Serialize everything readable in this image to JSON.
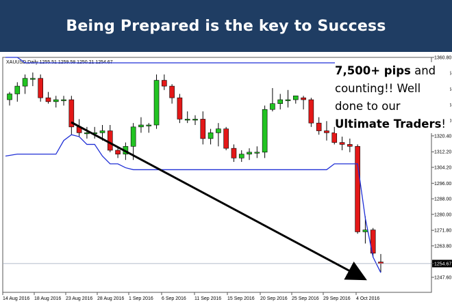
{
  "banner": {
    "title": "Being Prepared is the key to Success"
  },
  "caption": {
    "line1_bold": "7,500+ pips",
    "line1_rest": " and",
    "line2": "counting!!  Well",
    "line3": "done to our",
    "line4_bold": "Ultimate Traders",
    "line4_rest": "!"
  },
  "colors": {
    "up": "#22c322",
    "down": "#e31818",
    "channel": "#1f2fd6",
    "arrow": "#000000",
    "banner": "#1f3d63",
    "current_price_bg": "#000000"
  },
  "chart_data": {
    "type": "candlestick",
    "symbol_header": "XAUUSD,Daily  1255.51 1259.58 1250.21 1254.67",
    "y_ticks": [
      "1360.80",
      "1352.65",
      "1344.45",
      "1336.35",
      "1328.20",
      "1320.40",
      "1312.20",
      "1304.20",
      "1296.00",
      "1288.00",
      "1280.00",
      "1271.80",
      "1263.80",
      "1254.67",
      "1247.60"
    ],
    "current_price": "1254.67",
    "ylim": [
      1247.6,
      1360.8
    ],
    "x_ticks": [
      "14 Aug 2016",
      "18 Aug 2016",
      "23 Aug 2016",
      "28 Aug 2016",
      "1 Sep 2016",
      "6 Sep 2016",
      "11 Sep 2016",
      "15 Sep 2016",
      "20 Sep 2016",
      "25 Sep 2016",
      "29 Sep 2016",
      "4 Oct 2016"
    ],
    "candles": [
      {
        "o": 1339,
        "h": 1343,
        "l": 1336,
        "c": 1342
      },
      {
        "o": 1342,
        "h": 1348,
        "l": 1338,
        "c": 1346
      },
      {
        "o": 1346,
        "h": 1352,
        "l": 1342,
        "c": 1350
      },
      {
        "o": 1350,
        "h": 1353,
        "l": 1346,
        "c": 1350
      },
      {
        "o": 1350,
        "h": 1352,
        "l": 1338,
        "c": 1340
      },
      {
        "o": 1340,
        "h": 1343,
        "l": 1337,
        "c": 1338
      },
      {
        "o": 1338,
        "h": 1341,
        "l": 1335,
        "c": 1339
      },
      {
        "o": 1339,
        "h": 1341,
        "l": 1336,
        "c": 1339
      },
      {
        "o": 1339,
        "h": 1341,
        "l": 1321,
        "c": 1325
      },
      {
        "o": 1325,
        "h": 1329,
        "l": 1320,
        "c": 1322
      },
      {
        "o": 1322,
        "h": 1325,
        "l": 1319,
        "c": 1322
      },
      {
        "o": 1322,
        "h": 1325,
        "l": 1319,
        "c": 1322
      },
      {
        "o": 1322,
        "h": 1326,
        "l": 1318,
        "c": 1323
      },
      {
        "o": 1323,
        "h": 1326,
        "l": 1312,
        "c": 1313
      },
      {
        "o": 1313,
        "h": 1315,
        "l": 1309,
        "c": 1311
      },
      {
        "o": 1311,
        "h": 1317,
        "l": 1308,
        "c": 1315
      },
      {
        "o": 1315,
        "h": 1327,
        "l": 1308,
        "c": 1325
      },
      {
        "o": 1325,
        "h": 1330,
        "l": 1322,
        "c": 1326
      },
      {
        "o": 1326,
        "h": 1327,
        "l": 1322,
        "c": 1326
      },
      {
        "o": 1326,
        "h": 1352,
        "l": 1324,
        "c": 1349
      },
      {
        "o": 1349,
        "h": 1352,
        "l": 1344,
        "c": 1346
      },
      {
        "o": 1346,
        "h": 1347,
        "l": 1337,
        "c": 1340
      },
      {
        "o": 1340,
        "h": 1342,
        "l": 1327,
        "c": 1329
      },
      {
        "o": 1329,
        "h": 1333,
        "l": 1327,
        "c": 1329
      },
      {
        "o": 1329,
        "h": 1331,
        "l": 1326,
        "c": 1329
      },
      {
        "o": 1329,
        "h": 1333,
        "l": 1316,
        "c": 1319
      },
      {
        "o": 1319,
        "h": 1324,
        "l": 1316,
        "c": 1322
      },
      {
        "o": 1322,
        "h": 1327,
        "l": 1315,
        "c": 1324
      },
      {
        "o": 1324,
        "h": 1325,
        "l": 1313,
        "c": 1314
      },
      {
        "o": 1314,
        "h": 1316,
        "l": 1307,
        "c": 1309
      },
      {
        "o": 1309,
        "h": 1313,
        "l": 1307,
        "c": 1311
      },
      {
        "o": 1311,
        "h": 1314,
        "l": 1308,
        "c": 1312
      },
      {
        "o": 1312,
        "h": 1315,
        "l": 1309,
        "c": 1312
      },
      {
        "o": 1312,
        "h": 1336,
        "l": 1309,
        "c": 1334
      },
      {
        "o": 1334,
        "h": 1345,
        "l": 1333,
        "c": 1337
      },
      {
        "o": 1337,
        "h": 1342,
        "l": 1334,
        "c": 1339
      },
      {
        "o": 1339,
        "h": 1344,
        "l": 1335,
        "c": 1339
      },
      {
        "o": 1339,
        "h": 1341,
        "l": 1337,
        "c": 1341
      },
      {
        "o": 1340,
        "h": 1341,
        "l": 1334,
        "c": 1339
      },
      {
        "o": 1339,
        "h": 1340,
        "l": 1325,
        "c": 1327
      },
      {
        "o": 1327,
        "h": 1330,
        "l": 1321,
        "c": 1323
      },
      {
        "o": 1323,
        "h": 1328,
        "l": 1318,
        "c": 1322
      },
      {
        "o": 1322,
        "h": 1325,
        "l": 1316,
        "c": 1317
      },
      {
        "o": 1317,
        "h": 1320,
        "l": 1313,
        "c": 1316
      },
      {
        "o": 1316,
        "h": 1319,
        "l": 1312,
        "c": 1315
      },
      {
        "o": 1315,
        "h": 1316,
        "l": 1270,
        "c": 1271
      },
      {
        "o": 1271,
        "h": 1279,
        "l": 1265,
        "c": 1272
      },
      {
        "o": 1272,
        "h": 1273,
        "l": 1258,
        "c": 1260
      },
      {
        "o": 1255.5,
        "h": 1259.6,
        "l": 1250.2,
        "c": 1254.7
      }
    ],
    "channel_upper": [
      1360.8,
      1360.8,
      1358,
      1358,
      1358,
      1358,
      1358,
      1358,
      1358,
      1358,
      1358,
      1358,
      1358,
      1358,
      1358,
      1358,
      1358,
      1358,
      1358,
      1358,
      1358,
      1358,
      1358,
      1358,
      1358,
      1358,
      1358,
      1358,
      1358,
      1358,
      1358,
      1358,
      1358,
      1358,
      1358,
      1358,
      1358,
      1358,
      1358,
      1358,
      1358,
      1358,
      1358,
      1358,
      1358,
      1358,
      1358,
      1358,
      1358
    ],
    "channel_lower": [
      1310,
      1311,
      1311,
      1311,
      1311,
      1311,
      1311,
      1318,
      1321,
      1320,
      1316,
      1316,
      1310,
      1306,
      1306,
      1304,
      1303,
      1303,
      1303,
      1303,
      1303,
      1303,
      1303,
      1303,
      1303,
      1303,
      1303,
      1303,
      1303,
      1303,
      1303,
      1303,
      1303,
      1303,
      1303,
      1303,
      1303,
      1303,
      1303,
      1303,
      1303,
      1303,
      1306,
      1306,
      1306,
      1306,
      1278,
      1258,
      1250
    ]
  }
}
